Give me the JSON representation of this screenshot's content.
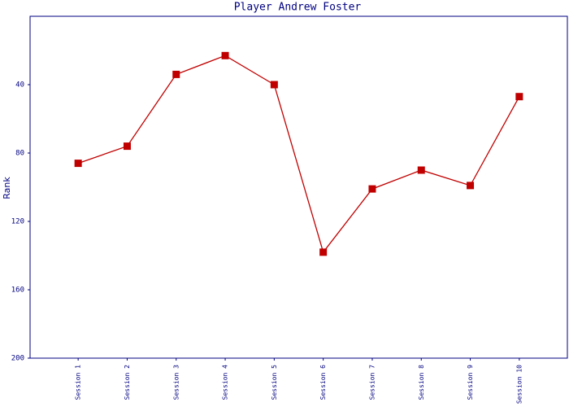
{
  "chart_data": {
    "type": "line",
    "title": "Player Andrew Foster",
    "y_label": "Rank",
    "categories": [
      "Session 1",
      "Session 2",
      "Session 3",
      "Session 4",
      "Session 5",
      "Session 6",
      "Session 7",
      "Session 8",
      "Session 9",
      "Session 10"
    ],
    "series": [
      {
        "name": "Rank",
        "color": "#c00000",
        "values": [
          86,
          76,
          34,
          23,
          40,
          138,
          101,
          90,
          99,
          47
        ]
      }
    ],
    "ylim": [
      200,
      0
    ],
    "yticks": [
      40,
      80,
      120,
      160,
      200
    ],
    "grid": false
  }
}
